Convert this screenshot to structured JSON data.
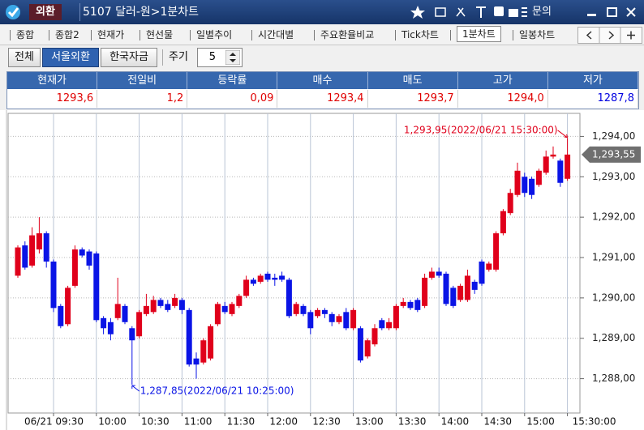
{
  "window": {
    "tab": "외환",
    "title": "5107 달러-원>1분차트",
    "inquiry": "문의"
  },
  "tabs": [
    "종합",
    "종합2",
    "현재가",
    "현선물",
    "일별추이",
    "시간대별",
    "주요환율비교",
    "Tick차트",
    "1분차트",
    "일봉차트"
  ],
  "active_tab": 8,
  "toolbar": {
    "markets": [
      "전체",
      "서울외환",
      "한국자금"
    ],
    "active_market": 1,
    "period_label": "주기",
    "period": "5"
  },
  "quote": {
    "headers": [
      "현재가",
      "전일비",
      "등락률",
      "매수",
      "매도",
      "고가",
      "저가"
    ],
    "values": [
      "1293,6",
      "1,2",
      "0,09",
      "1293,4",
      "1293,7",
      "1294,0",
      "1287,8"
    ],
    "value_colors": [
      "#e00000",
      "#e00000",
      "#e00000",
      "#e00000",
      "#e00000",
      "#e00000",
      "#0000e0"
    ]
  },
  "chart_data": {
    "type": "candlestick",
    "x": [
      "09:05",
      "09:10",
      "09:15",
      "09:20",
      "09:25",
      "09:30",
      "09:35",
      "09:40",
      "09:45",
      "09:50",
      "09:55",
      "10:00",
      "10:05",
      "10:10",
      "10:15",
      "10:20",
      "10:25",
      "10:30",
      "10:35",
      "10:40",
      "10:45",
      "10:50",
      "10:55",
      "11:00",
      "11:05",
      "11:10",
      "11:15",
      "11:20",
      "11:25",
      "11:30",
      "11:35",
      "11:40",
      "11:45",
      "11:50",
      "11:55",
      "12:00",
      "12:05",
      "12:10",
      "12:15",
      "12:20",
      "12:25",
      "12:30",
      "12:35",
      "12:40",
      "12:45",
      "12:50",
      "12:55",
      "13:00",
      "13:05",
      "13:10",
      "13:15",
      "13:20",
      "13:25",
      "13:30",
      "13:35",
      "13:40",
      "13:45",
      "13:50",
      "13:55",
      "14:00",
      "14:05",
      "14:10",
      "14:15",
      "14:20",
      "14:25",
      "14:30",
      "14:35",
      "14:40",
      "14:45",
      "14:50",
      "14:55",
      "15:00",
      "15:05",
      "15:10",
      "15:15",
      "15:20",
      "15:25",
      "15:30"
    ],
    "open": [
      1290.55,
      1291.3,
      1290.8,
      1291.2,
      1291.6,
      1290.9,
      1289.8,
      1289.35,
      1290.3,
      1291.2,
      1291.15,
      1291.1,
      1289.5,
      1289.4,
      1289.5,
      1289.8,
      1289.25,
      1289.05,
      1289.6,
      1289.65,
      1289.95,
      1289.85,
      1289.8,
      1289.95,
      1289.7,
      1288.5,
      1288.4,
      1288.5,
      1289.35,
      1289.8,
      1289.6,
      1289.8,
      1290.05,
      1290.45,
      1290.4,
      1290.6,
      1290.5,
      1290.55,
      1290.45,
      1289.6,
      1289.8,
      1289.65,
      1289.55,
      1289.7,
      1289.6,
      1289.4,
      1289.65,
      1289.25,
      1289.25,
      1288.55,
      1288.85,
      1289.45,
      1289.25,
      1289.25,
      1289.8,
      1289.9,
      1289.95,
      1289.8,
      1290.5,
      1290.65,
      1290.6,
      1290.25,
      1289.95,
      1289.95,
      1290.4,
      1290.9,
      1290.7,
      1290.7,
      1291.6,
      1292.1,
      1292.55,
      1293.0,
      1292.95,
      1292.8,
      1293.1,
      1293.5,
      1293.4,
      1292.95
    ],
    "high": [
      1291.3,
      1291.4,
      1291.75,
      1292.0,
      1291.65,
      1290.95,
      1289.85,
      1290.3,
      1291.3,
      1291.25,
      1291.2,
      1291.15,
      1289.55,
      1289.5,
      1290.5,
      1289.85,
      1289.3,
      1289.7,
      1290.1,
      1290.05,
      1290.0,
      1289.95,
      1290.1,
      1290.0,
      1289.75,
      1288.65,
      1289.0,
      1289.35,
      1289.9,
      1289.9,
      1289.9,
      1290.1,
      1290.55,
      1290.5,
      1290.6,
      1290.65,
      1290.6,
      1290.65,
      1290.5,
      1289.9,
      1289.85,
      1289.7,
      1289.75,
      1289.75,
      1289.65,
      1289.6,
      1289.75,
      1289.75,
      1289.3,
      1289.0,
      1289.35,
      1289.5,
      1289.5,
      1289.85,
      1290.0,
      1289.95,
      1290.0,
      1290.6,
      1290.75,
      1290.75,
      1290.65,
      1290.3,
      1290.35,
      1290.7,
      1290.45,
      1290.95,
      1290.9,
      1291.65,
      1292.2,
      1292.7,
      1293.35,
      1293.1,
      1293.0,
      1293.2,
      1293.65,
      1293.75,
      1293.45,
      1293.95
    ],
    "low": [
      1290.5,
      1290.7,
      1290.75,
      1291.1,
      1290.75,
      1289.65,
      1289.25,
      1289.3,
      1290.25,
      1291.0,
      1290.7,
      1289.4,
      1289.1,
      1288.95,
      1289.45,
      1289.35,
      1287.85,
      1289.0,
      1289.55,
      1289.6,
      1289.75,
      1289.65,
      1289.75,
      1289.6,
      1288.3,
      1288.0,
      1288.35,
      1288.45,
      1289.3,
      1289.6,
      1289.55,
      1289.75,
      1290.0,
      1290.3,
      1290.35,
      1290.4,
      1290.3,
      1290.4,
      1289.5,
      1289.55,
      1289.55,
      1289.1,
      1289.5,
      1289.5,
      1289.3,
      1289.35,
      1289.2,
      1289.2,
      1288.4,
      1288.5,
      1288.8,
      1289.2,
      1289.2,
      1289.2,
      1289.75,
      1289.7,
      1289.65,
      1289.75,
      1290.45,
      1290.5,
      1289.8,
      1289.75,
      1289.9,
      1289.9,
      1290.1,
      1290.3,
      1290.65,
      1290.65,
      1291.55,
      1292.05,
      1292.5,
      1292.5,
      1292.45,
      1292.75,
      1293.05,
      1293.45,
      1292.75,
      1292.9
    ],
    "close": [
      1291.25,
      1290.75,
      1291.55,
      1291.6,
      1290.9,
      1289.75,
      1289.3,
      1290.25,
      1291.2,
      1291.05,
      1290.8,
      1289.45,
      1289.25,
      1289.1,
      1289.85,
      1289.4,
      1288.95,
      1289.65,
      1289.8,
      1289.95,
      1289.8,
      1289.7,
      1290.0,
      1289.7,
      1288.35,
      1288.35,
      1288.95,
      1289.3,
      1289.85,
      1289.65,
      1289.85,
      1290.05,
      1290.45,
      1290.35,
      1290.55,
      1290.45,
      1290.45,
      1290.45,
      1289.55,
      1289.85,
      1289.6,
      1289.25,
      1289.7,
      1289.6,
      1289.4,
      1289.55,
      1289.25,
      1289.7,
      1288.45,
      1288.95,
      1289.25,
      1289.25,
      1289.4,
      1289.8,
      1289.9,
      1289.75,
      1289.7,
      1290.5,
      1290.65,
      1290.55,
      1289.85,
      1289.8,
      1290.3,
      1290.55,
      1290.2,
      1290.35,
      1290.85,
      1291.6,
      1292.15,
      1292.6,
      1293.15,
      1292.6,
      1292.55,
      1293.15,
      1293.5,
      1293.55,
      1292.85,
      1293.55
    ],
    "up_color": "#e0001b",
    "down_color": "#0a14e6",
    "ylim": [
      1287.15,
      1294.57
    ],
    "yticks": [
      {
        "value": 1288,
        "label": "1,288,00"
      },
      {
        "value": 1289,
        "label": "1,289,00"
      },
      {
        "value": 1290,
        "label": "1,290,00"
      },
      {
        "value": 1291,
        "label": "1,291,00"
      },
      {
        "value": 1292,
        "label": "1,292,00"
      },
      {
        "value": 1293,
        "label": "1,293,00"
      },
      {
        "value": 1294,
        "label": "1,294,00"
      }
    ],
    "xticks": [
      {
        "value": "09:30",
        "label": "06/21 09:30"
      },
      "10:00",
      "10:30",
      "11:00",
      "11:30",
      "12:00",
      "12:30",
      "13:00",
      "13:30",
      "14:00",
      "14:30",
      "15:00",
      {
        "value": "15:30",
        "label": "15:30:00"
      }
    ],
    "grid": true,
    "current": {
      "value": 1293.55,
      "label": "1,293,55"
    },
    "annotations": [
      {
        "text": "1,293,95(2022/06/21 15:30:00)",
        "x": "15:30",
        "y": 1293.95,
        "color": "#e0001b"
      },
      {
        "text": "1,287,85(2022/06/21 10:25:00)",
        "x": "10:25",
        "y": 1287.85,
        "color": "#0a14e6"
      }
    ]
  }
}
